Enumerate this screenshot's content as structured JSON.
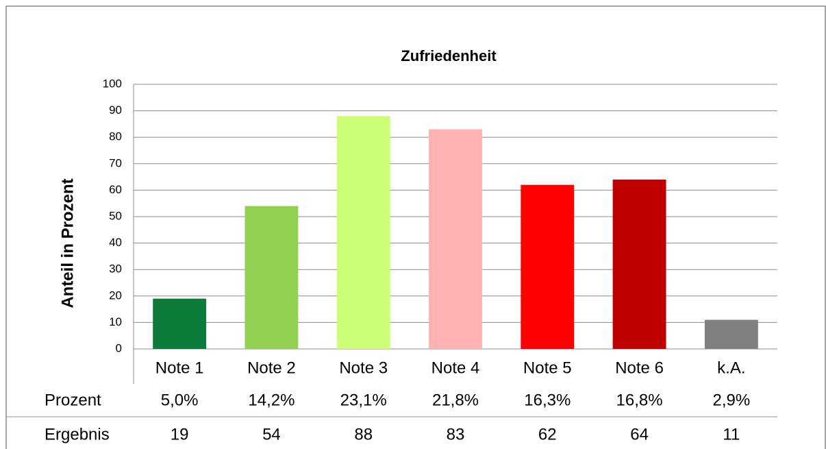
{
  "chart_data": {
    "type": "bar",
    "title": "Zufriedenheit",
    "y_label": "Anteil in Prozent",
    "categories": [
      "Note 1",
      "Note 2",
      "Note 3",
      "Note 4",
      "Note 5",
      "Note 6",
      "k.A."
    ],
    "values": [
      19,
      54,
      88,
      83,
      62,
      64,
      11
    ],
    "colors": [
      "#0c7b3a",
      "#92d050",
      "#ccff77",
      "#ffb3b3",
      "#ff0000",
      "#c00000",
      "#808080"
    ],
    "ylim": [
      0,
      100
    ],
    "yticks": [
      0,
      10,
      20,
      30,
      40,
      50,
      60,
      70,
      80,
      90,
      100
    ],
    "grid": true,
    "table": {
      "rows": [
        {
          "label": "Prozent",
          "cells": [
            "5,0%",
            "14,2%",
            "23,1%",
            "21,8%",
            "16,3%",
            "16,8%",
            "2,9%"
          ]
        },
        {
          "label": "Ergebnis"
        }
      ]
    }
  }
}
